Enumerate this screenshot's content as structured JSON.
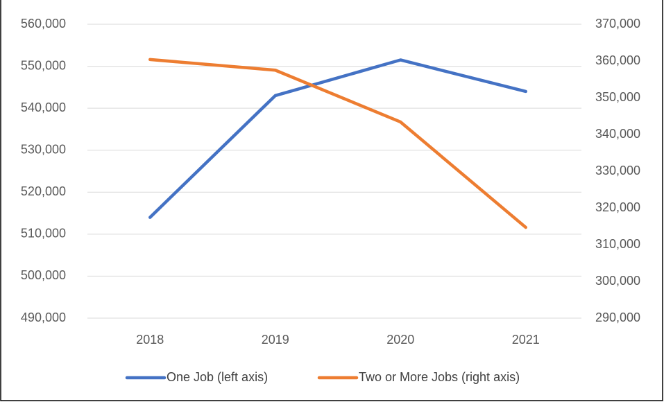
{
  "chart_data": {
    "type": "line",
    "categories": [
      "2018",
      "2019",
      "2020",
      "2021"
    ],
    "series": [
      {
        "name": "One Job (left axis)",
        "color": "#4472c4",
        "values": [
          514000,
          543000,
          551500,
          544000
        ]
      },
      {
        "name": "Two or More Jobs (right axis)",
        "color": "#ed7d31",
        "axis": "y2",
        "values": [
          360400,
          357500,
          343400,
          314700
        ]
      }
    ],
    "ylim": [
      490000,
      560000
    ],
    "yticks": [
      {
        "value": 490000,
        "label": "490,000"
      },
      {
        "value": 500000,
        "label": "500,000"
      },
      {
        "value": 510000,
        "label": "510,000"
      },
      {
        "value": 520000,
        "label": "520,000"
      },
      {
        "value": 530000,
        "label": "530,000"
      },
      {
        "value": 540000,
        "label": "540,000"
      },
      {
        "value": 550000,
        "label": "550,000"
      },
      {
        "value": 560000,
        "label": "560,000"
      }
    ],
    "y2lim": [
      290000,
      370000
    ],
    "y2ticks": [
      {
        "value": 290000,
        "label": "290,000"
      },
      {
        "value": 300000,
        "label": "300,000"
      },
      {
        "value": 310000,
        "label": "310,000"
      },
      {
        "value": 320000,
        "label": "320,000"
      },
      {
        "value": 330000,
        "label": "330,000"
      },
      {
        "value": 340000,
        "label": "340,000"
      },
      {
        "value": 350000,
        "label": "350,000"
      },
      {
        "value": 360000,
        "label": "360,000"
      },
      {
        "value": 370000,
        "label": "370,000"
      }
    ],
    "grid": true,
    "legend": "bottom"
  }
}
